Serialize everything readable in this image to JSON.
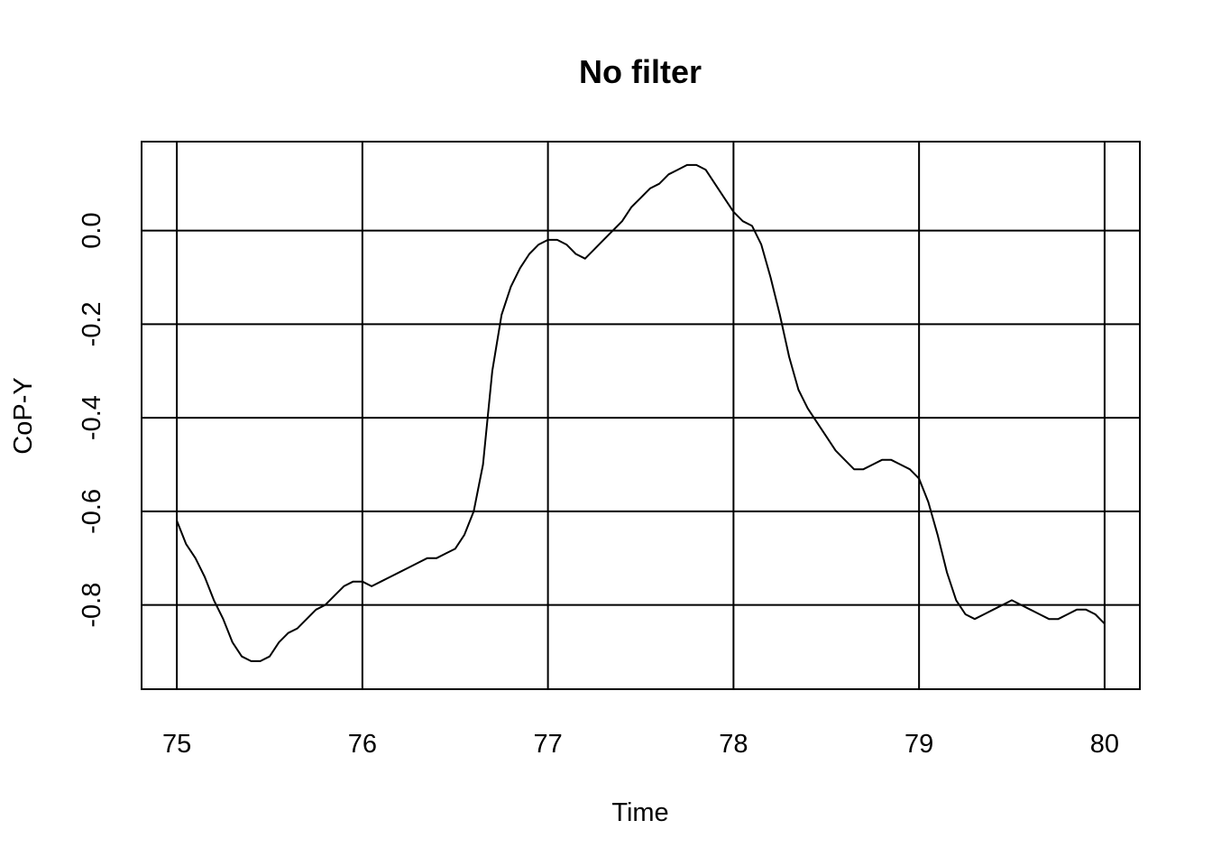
{
  "chart_data": {
    "type": "line",
    "title": "No filter",
    "xlabel": "Time",
    "ylabel": "CoP-Y",
    "xlim": [
      74.81,
      80.19
    ],
    "ylim": [
      -0.98,
      0.19
    ],
    "x_ticks": [
      75,
      76,
      77,
      78,
      79,
      80
    ],
    "x_tick_labels": [
      "75",
      "76",
      "77",
      "78",
      "79",
      "80"
    ],
    "y_ticks": [
      -0.8,
      -0.6,
      -0.4,
      -0.2,
      0.0
    ],
    "y_tick_labels": [
      "-0.8",
      "-0.6",
      "-0.4",
      "-0.2",
      "0.0"
    ],
    "grid": true,
    "series": [
      {
        "color": "#000000",
        "x": [
          75.0,
          75.05,
          75.1,
          75.15,
          75.2,
          75.25,
          75.3,
          75.35,
          75.4,
          75.45,
          75.5,
          75.55,
          75.6,
          75.65,
          75.7,
          75.75,
          75.8,
          75.85,
          75.9,
          75.95,
          76.0,
          76.05,
          76.1,
          76.15,
          76.2,
          76.25,
          76.3,
          76.35,
          76.4,
          76.45,
          76.5,
          76.55,
          76.6,
          76.65,
          76.7,
          76.75,
          76.8,
          76.85,
          76.9,
          76.95,
          77.0,
          77.05,
          77.1,
          77.15,
          77.2,
          77.25,
          77.3,
          77.35,
          77.4,
          77.45,
          77.5,
          77.55,
          77.6,
          77.65,
          77.7,
          77.75,
          77.8,
          77.85,
          77.9,
          77.95,
          78.0,
          78.05,
          78.1,
          78.15,
          78.2,
          78.25,
          78.3,
          78.35,
          78.4,
          78.45,
          78.5,
          78.55,
          78.6,
          78.65,
          78.7,
          78.75,
          78.8,
          78.85,
          78.9,
          78.95,
          79.0,
          79.05,
          79.1,
          79.15,
          79.2,
          79.25,
          79.3,
          79.35,
          79.4,
          79.45,
          79.5,
          79.55,
          79.6,
          79.65,
          79.7,
          79.75,
          79.8,
          79.85,
          79.9,
          79.95,
          80.0
        ],
        "y": [
          -0.62,
          -0.67,
          -0.7,
          -0.74,
          -0.79,
          -0.83,
          -0.88,
          -0.91,
          -0.92,
          -0.92,
          -0.91,
          -0.88,
          -0.86,
          -0.85,
          -0.83,
          -0.81,
          -0.8,
          -0.78,
          -0.76,
          -0.75,
          -0.75,
          -0.76,
          -0.75,
          -0.74,
          -0.73,
          -0.72,
          -0.71,
          -0.7,
          -0.7,
          -0.69,
          -0.68,
          -0.65,
          -0.6,
          -0.5,
          -0.3,
          -0.18,
          -0.12,
          -0.08,
          -0.05,
          -0.03,
          -0.02,
          -0.02,
          -0.03,
          -0.05,
          -0.06,
          -0.04,
          -0.02,
          0.0,
          0.02,
          0.05,
          0.07,
          0.09,
          0.1,
          0.12,
          0.13,
          0.14,
          0.14,
          0.13,
          0.1,
          0.07,
          0.04,
          0.02,
          0.01,
          -0.03,
          -0.1,
          -0.18,
          -0.27,
          -0.34,
          -0.38,
          -0.41,
          -0.44,
          -0.47,
          -0.49,
          -0.51,
          -0.51,
          -0.5,
          -0.49,
          -0.49,
          -0.5,
          -0.51,
          -0.53,
          -0.58,
          -0.65,
          -0.73,
          -0.79,
          -0.82,
          -0.83,
          -0.82,
          -0.81,
          -0.8,
          -0.79,
          -0.8,
          -0.81,
          -0.82,
          -0.83,
          -0.83,
          -0.82,
          -0.81,
          -0.81,
          -0.82,
          -0.84
        ]
      }
    ]
  }
}
